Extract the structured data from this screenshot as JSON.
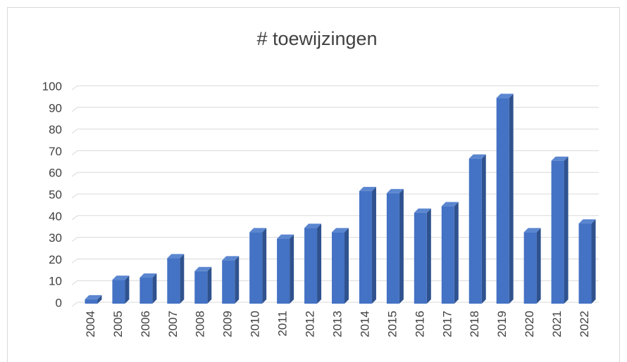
{
  "chart_data": {
    "type": "bar",
    "title": "# toewijzingen",
    "categories": [
      "2004",
      "2005",
      "2006",
      "2007",
      "2008",
      "2009",
      "2010",
      "2011",
      "2012",
      "2013",
      "2014",
      "2015",
      "2016",
      "2017",
      "2018",
      "2019",
      "2020",
      "2021",
      "2022"
    ],
    "values": [
      2,
      11,
      12,
      21,
      15,
      20,
      33,
      30,
      35,
      33,
      52,
      51,
      42,
      45,
      67,
      95,
      33,
      66,
      37
    ],
    "color": "#4472c4",
    "ylim": [
      0,
      100
    ],
    "yticks": [
      0,
      10,
      20,
      30,
      40,
      50,
      60,
      70,
      80,
      90,
      100
    ],
    "grid": true
  }
}
